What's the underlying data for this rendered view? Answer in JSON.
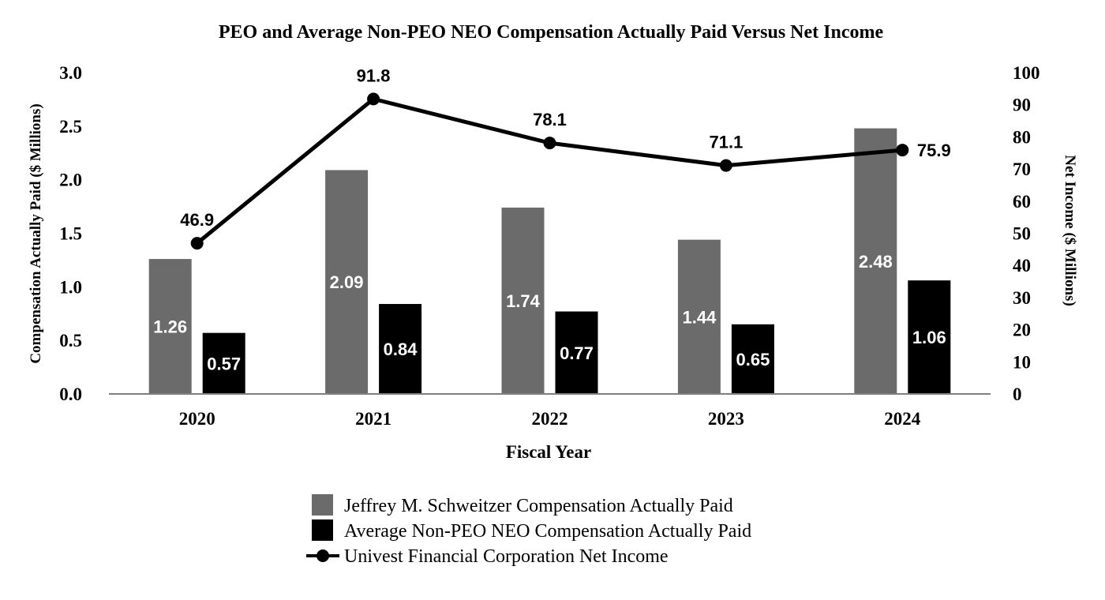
{
  "chart_data": {
    "type": "bar",
    "title": "PEO and Average Non-PEO NEO Compensation Actually Paid Versus Net Income",
    "xlabel": "Fiscal Year",
    "ylabel": "Compensation Actually Paid ($ Millions)",
    "y2label": "Net Income ($ Millions)",
    "categories": [
      "2020",
      "2021",
      "2022",
      "2023",
      "2024"
    ],
    "ylim": [
      0,
      3.0
    ],
    "y2lim": [
      0,
      100
    ],
    "yticks": [
      "0.0",
      "0.5",
      "1.0",
      "1.5",
      "2.0",
      "2.5",
      "3.0"
    ],
    "y2ticks": [
      "0",
      "10",
      "20",
      "30",
      "40",
      "50",
      "60",
      "70",
      "80",
      "90",
      "100"
    ],
    "series": [
      {
        "name": "Jeffrey M. Schweitzer Compensation Actually Paid",
        "type": "bar",
        "axis": "left",
        "color": "#6b6b6b",
        "values": [
          1.26,
          2.09,
          1.74,
          1.44,
          2.48
        ],
        "labels": [
          "1.26",
          "2.09",
          "1.74",
          "1.44",
          "2.48"
        ]
      },
      {
        "name": "Average Non-PEO NEO Compensation Actually Paid",
        "type": "bar",
        "axis": "left",
        "color": "#000000",
        "values": [
          0.57,
          0.84,
          0.77,
          0.65,
          1.06
        ],
        "labels": [
          "0.57",
          "0.84",
          "0.77",
          "0.65",
          "1.06"
        ]
      },
      {
        "name": "Univest Financial Corporation Net Income",
        "type": "line",
        "axis": "right",
        "color": "#000000",
        "values": [
          46.9,
          91.8,
          78.1,
          71.1,
          75.9
        ],
        "labels": [
          "46.9",
          "91.8",
          "78.1",
          "71.1",
          "75.9"
        ]
      }
    ],
    "legend_position": "bottom",
    "grid": false
  }
}
